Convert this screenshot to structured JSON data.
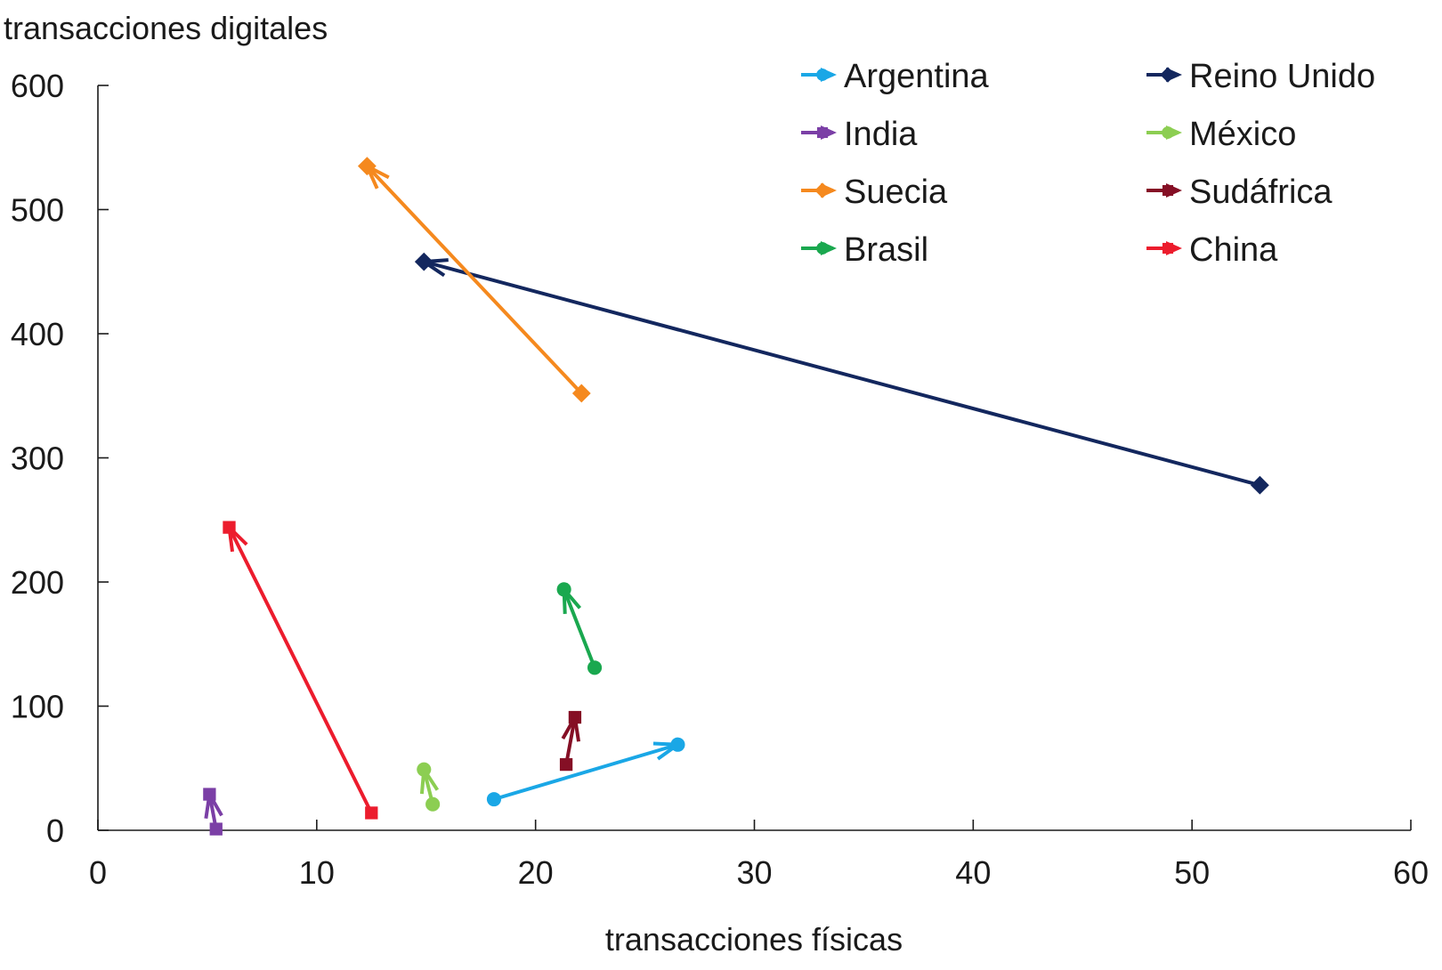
{
  "chart_data": {
    "type": "scatter",
    "xlabel": "transacciones físicas",
    "ylabel": "transacciones digitales",
    "xlim": [
      0,
      60
    ],
    "ylim": [
      0,
      600
    ],
    "xticks": [
      0,
      10,
      20,
      30,
      40,
      50,
      60
    ],
    "yticks": [
      0,
      100,
      200,
      300,
      400,
      500,
      600
    ],
    "grid": false,
    "legend_position": "top-right",
    "series": [
      {
        "name": "Argentina",
        "color": "#1aa7e6",
        "marker": "circle",
        "points": [
          {
            "x": 18.1,
            "y": 25
          },
          {
            "x": 26.5,
            "y": 69
          }
        ]
      },
      {
        "name": "Reino Unido",
        "color": "#13275e",
        "marker": "diamond",
        "points": [
          {
            "x": 53.1,
            "y": 278
          },
          {
            "x": 14.9,
            "y": 458
          }
        ]
      },
      {
        "name": "India",
        "color": "#7b3fa6",
        "marker": "square",
        "points": [
          {
            "x": 5.4,
            "y": 1
          },
          {
            "x": 5.1,
            "y": 29
          }
        ]
      },
      {
        "name": "México",
        "color": "#8cce52",
        "marker": "circle",
        "points": [
          {
            "x": 15.3,
            "y": 21
          },
          {
            "x": 14.9,
            "y": 49
          }
        ]
      },
      {
        "name": "Suecia",
        "color": "#f5891e",
        "marker": "diamond",
        "points": [
          {
            "x": 22.1,
            "y": 352
          },
          {
            "x": 12.3,
            "y": 535
          }
        ]
      },
      {
        "name": "Sudáfrica",
        "color": "#850f25",
        "marker": "square",
        "points": [
          {
            "x": 21.4,
            "y": 53
          },
          {
            "x": 21.8,
            "y": 91
          }
        ]
      },
      {
        "name": "Brasil",
        "color": "#1aa84f",
        "marker": "circle",
        "points": [
          {
            "x": 22.7,
            "y": 131
          },
          {
            "x": 21.3,
            "y": 194
          }
        ]
      },
      {
        "name": "China",
        "color": "#ec1c2d",
        "marker": "square",
        "points": [
          {
            "x": 12.5,
            "y": 14
          },
          {
            "x": 6.0,
            "y": 244
          }
        ]
      }
    ]
  }
}
